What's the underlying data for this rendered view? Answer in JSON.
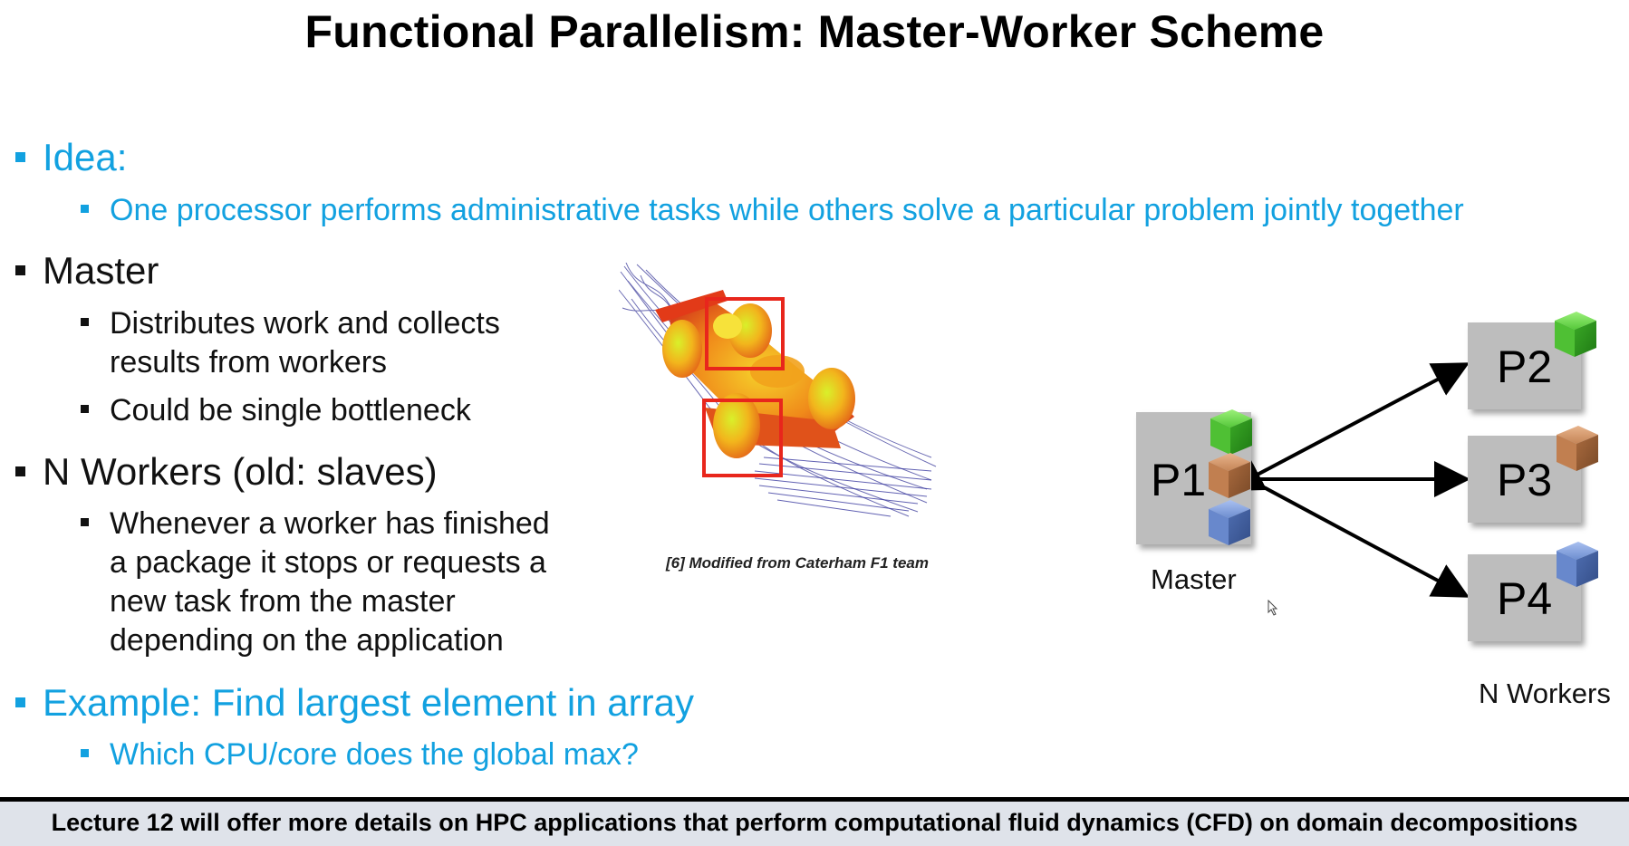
{
  "title": "Functional Parallelism: Master-Worker Scheme",
  "bullets": {
    "idea": "Idea:",
    "idea_sub": "One processor performs administrative tasks while others solve a particular problem jointly together",
    "master": "Master",
    "master_sub1_line1": "Distributes work and collects",
    "master_sub1_line2": "results from workers",
    "master_sub2": "Could be single bottleneck",
    "workers": "N Workers (old: slaves)",
    "workers_sub_line1": "Whenever a worker has finished",
    "workers_sub_line2": "a package it stops or requests a",
    "workers_sub_line3": "new task from the master",
    "workers_sub_line4": "depending on the application",
    "example": "Example:  Find largest element in array",
    "example_sub": "Which CPU/core does the global max?"
  },
  "figure": {
    "caption": "[6] Modified from Caterham F1 team"
  },
  "diagram": {
    "p1": "P1",
    "p2": "P2",
    "p3": "P3",
    "p4": "P4",
    "master_label": "Master",
    "workers_label": "N Workers"
  },
  "footer": "Lecture 12 will offer more details on HPC applications that perform computational fluid dynamics (CFD) on domain decompositions",
  "colors": {
    "accent_blue": "#12a1e0",
    "box_gray": "#bdbdbd",
    "highlight_red": "#e8261c",
    "cube_green": "#3fb52a",
    "cube_brown": "#b9784a",
    "cube_blue": "#5b7bc0"
  }
}
